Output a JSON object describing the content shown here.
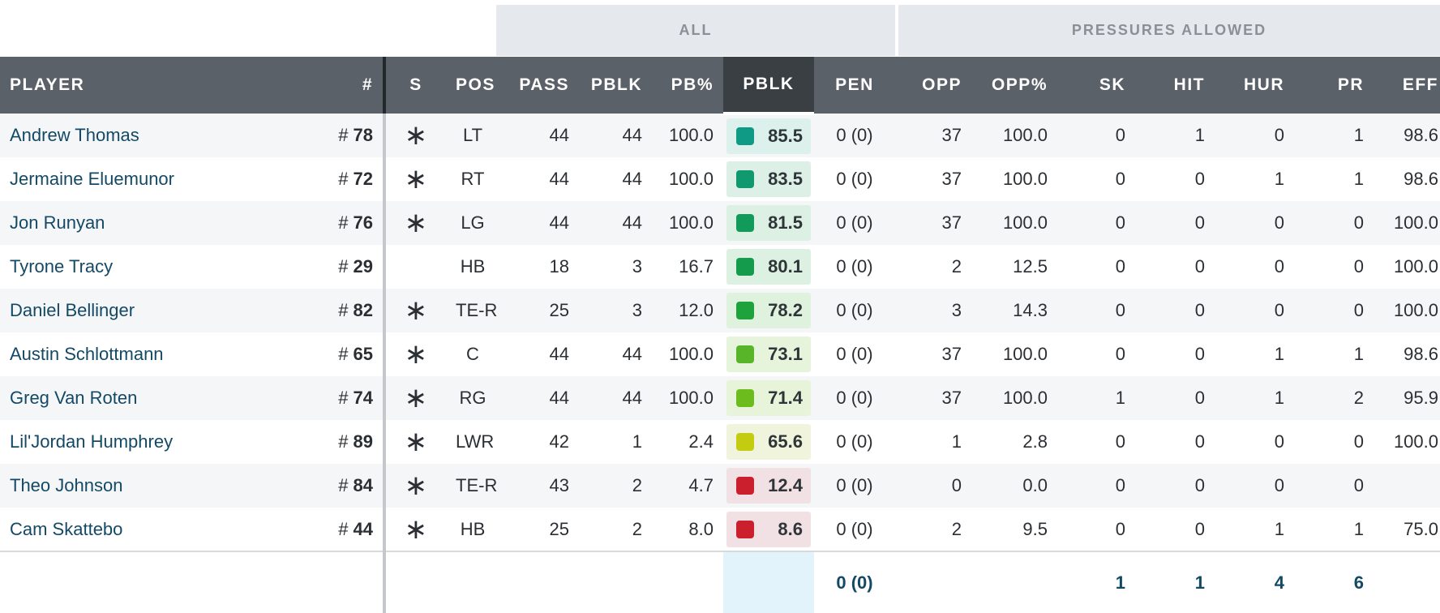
{
  "group_headers": {
    "all": "ALL",
    "pressures": "PRESSURES ALLOWED"
  },
  "columns": {
    "player": "PLAYER",
    "number": "#",
    "starter": "S",
    "pos": "POS",
    "pass": "PASS",
    "pblk_snaps": "PBLK",
    "pb_pct": "PB%",
    "grade": "PBLK",
    "pen": "PEN",
    "opp": "OPP",
    "opp_pct": "OPP%",
    "sk": "SK",
    "hit": "HIT",
    "hur": "HUR",
    "pr": "PR",
    "eff": "EFF"
  },
  "rows": [
    {
      "name": "Andrew Thomas",
      "hash": "#",
      "num": "78",
      "starter": "∗",
      "pos": "LT",
      "pass": "44",
      "pblk": "44",
      "pb_pct": "100.0",
      "grade": "85.5",
      "grade_color": "#0f9a85",
      "grade_bg": "#dcf0ec",
      "pen": "0 (0)",
      "opp": "37",
      "opp_pct": "100.0",
      "sk": "0",
      "hit": "1",
      "hur": "0",
      "pr": "1",
      "eff": "98.6"
    },
    {
      "name": "Jermaine Eluemunor",
      "hash": "#",
      "num": "72",
      "starter": "∗",
      "pos": "RT",
      "pass": "44",
      "pblk": "44",
      "pb_pct": "100.0",
      "grade": "83.5",
      "grade_color": "#10986f",
      "grade_bg": "#dcf0e8",
      "pen": "0 (0)",
      "opp": "37",
      "opp_pct": "100.0",
      "sk": "0",
      "hit": "0",
      "hur": "1",
      "pr": "1",
      "eff": "98.6"
    },
    {
      "name": "Jon Runyan",
      "hash": "#",
      "num": "76",
      "starter": "∗",
      "pos": "LG",
      "pass": "44",
      "pblk": "44",
      "pb_pct": "100.0",
      "grade": "81.5",
      "grade_color": "#129a5a",
      "grade_bg": "#dcf0e4",
      "pen": "0 (0)",
      "opp": "37",
      "opp_pct": "100.0",
      "sk": "0",
      "hit": "0",
      "hur": "0",
      "pr": "0",
      "eff": "100.0"
    },
    {
      "name": "Tyrone Tracy",
      "hash": "#",
      "num": "29",
      "starter": "",
      "pos": "HB",
      "pass": "18",
      "pblk": "3",
      "pb_pct": "16.7",
      "grade": "80.1",
      "grade_color": "#149c4c",
      "grade_bg": "#ddf1e2",
      "pen": "0 (0)",
      "opp": "2",
      "opp_pct": "12.5",
      "sk": "0",
      "hit": "0",
      "hur": "0",
      "pr": "0",
      "eff": "100.0"
    },
    {
      "name": "Daniel Bellinger",
      "hash": "#",
      "num": "82",
      "starter": "∗",
      "pos": "TE-R",
      "pass": "25",
      "pblk": "3",
      "pb_pct": "12.0",
      "grade": "78.2",
      "grade_color": "#1ea23c",
      "grade_bg": "#dff2de",
      "pen": "0 (0)",
      "opp": "3",
      "opp_pct": "14.3",
      "sk": "0",
      "hit": "0",
      "hur": "0",
      "pr": "0",
      "eff": "100.0"
    },
    {
      "name": "Austin Schlottmann",
      "hash": "#",
      "num": "65",
      "starter": "∗",
      "pos": "C",
      "pass": "44",
      "pblk": "44",
      "pb_pct": "100.0",
      "grade": "73.1",
      "grade_color": "#58b52a",
      "grade_bg": "#e6f4dc",
      "pen": "0 (0)",
      "opp": "37",
      "opp_pct": "100.0",
      "sk": "0",
      "hit": "0",
      "hur": "1",
      "pr": "1",
      "eff": "98.6"
    },
    {
      "name": "Greg Van Roten",
      "hash": "#",
      "num": "74",
      "starter": "∗",
      "pos": "RG",
      "pass": "44",
      "pblk": "44",
      "pb_pct": "100.0",
      "grade": "71.4",
      "grade_color": "#6cbc1e",
      "grade_bg": "#e8f4da",
      "pen": "0 (0)",
      "opp": "37",
      "opp_pct": "100.0",
      "sk": "1",
      "hit": "0",
      "hur": "1",
      "pr": "2",
      "eff": "95.9"
    },
    {
      "name": "Lil'Jordan Humphrey",
      "hash": "#",
      "num": "89",
      "starter": "∗",
      "pos": "LWR",
      "pass": "42",
      "pblk": "1",
      "pb_pct": "2.4",
      "grade": "65.6",
      "grade_color": "#c3cc10",
      "grade_bg": "#f0f4dc",
      "pen": "0 (0)",
      "opp": "1",
      "opp_pct": "2.8",
      "sk": "0",
      "hit": "0",
      "hur": "0",
      "pr": "0",
      "eff": "100.0"
    },
    {
      "name": "Theo Johnson",
      "hash": "#",
      "num": "84",
      "starter": "∗",
      "pos": "TE-R",
      "pass": "43",
      "pblk": "2",
      "pb_pct": "4.7",
      "grade": "12.4",
      "grade_color": "#cc1f2e",
      "grade_bg": "#f2e1e4",
      "pen": "0 (0)",
      "opp": "0",
      "opp_pct": "0.0",
      "sk": "0",
      "hit": "0",
      "hur": "0",
      "pr": "0",
      "eff": ""
    },
    {
      "name": "Cam Skattebo",
      "hash": "#",
      "num": "44",
      "starter": "∗",
      "pos": "HB",
      "pass": "25",
      "pblk": "2",
      "pb_pct": "8.0",
      "grade": "8.6",
      "grade_color": "#cc1f2e",
      "grade_bg": "#f2e1e4",
      "pen": "0 (0)",
      "opp": "2",
      "opp_pct": "9.5",
      "sk": "0",
      "hit": "0",
      "hur": "1",
      "pr": "1",
      "eff": "75.0"
    }
  ],
  "totals": {
    "pen": "0 (0)",
    "sk": "1",
    "hit": "1",
    "hur": "4",
    "pr": "6"
  }
}
